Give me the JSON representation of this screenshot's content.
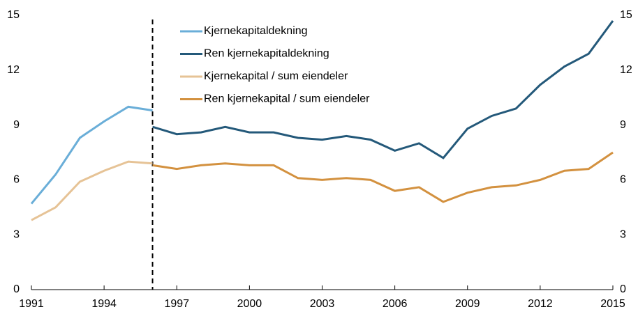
{
  "chart_data": {
    "type": "line",
    "x": [
      1991,
      1992,
      1993,
      1994,
      1995,
      1996,
      1997,
      1998,
      1999,
      2000,
      2001,
      2002,
      2003,
      2004,
      2005,
      2006,
      2007,
      2008,
      2009,
      2010,
      2011,
      2012,
      2013,
      2014,
      2015
    ],
    "series": [
      {
        "name": "Kjernekapitaldekning",
        "color": "#6aaed8",
        "values": [
          4.7,
          6.3,
          8.3,
          9.2,
          10.0,
          9.8,
          null,
          null,
          null,
          null,
          null,
          null,
          null,
          null,
          null,
          null,
          null,
          null,
          null,
          null,
          null,
          null,
          null,
          null,
          null
        ]
      },
      {
        "name": "Ren kjernekapitaldekning",
        "color": "#24597a",
        "values": [
          null,
          null,
          null,
          null,
          null,
          8.9,
          8.5,
          8.6,
          8.9,
          8.6,
          8.6,
          8.3,
          8.2,
          8.4,
          8.2,
          7.6,
          8.0,
          7.2,
          8.8,
          9.5,
          9.9,
          11.2,
          12.2,
          12.9,
          14.7
        ]
      },
      {
        "name": "Kjernekapital / sum eiendeler",
        "color": "#e6c396",
        "values": [
          3.8,
          4.5,
          5.9,
          6.5,
          7.0,
          6.9,
          null,
          null,
          null,
          null,
          null,
          null,
          null,
          null,
          null,
          null,
          null,
          null,
          null,
          null,
          null,
          null,
          null,
          null,
          null
        ]
      },
      {
        "name": "Ren kjernekapital / sum eiendeler",
        "color": "#d3913f",
        "values": [
          null,
          null,
          null,
          null,
          null,
          6.8,
          6.6,
          6.8,
          6.9,
          6.8,
          6.8,
          6.1,
          6.0,
          6.1,
          6.0,
          5.4,
          5.6,
          4.8,
          5.3,
          5.6,
          5.7,
          6.0,
          6.5,
          6.6,
          7.5
        ]
      }
    ],
    "xlim": [
      1991,
      2015
    ],
    "xticks": [
      1991,
      1994,
      1997,
      2000,
      2003,
      2006,
      2009,
      2012,
      2015
    ],
    "ylim": [
      0,
      15
    ],
    "yticks": [
      0,
      3,
      6,
      9,
      12,
      15
    ],
    "y2lim": [
      0,
      15
    ],
    "y2ticks": [
      0,
      3,
      6,
      9,
      12,
      15
    ],
    "vline": 1996,
    "legend": "upper center"
  }
}
